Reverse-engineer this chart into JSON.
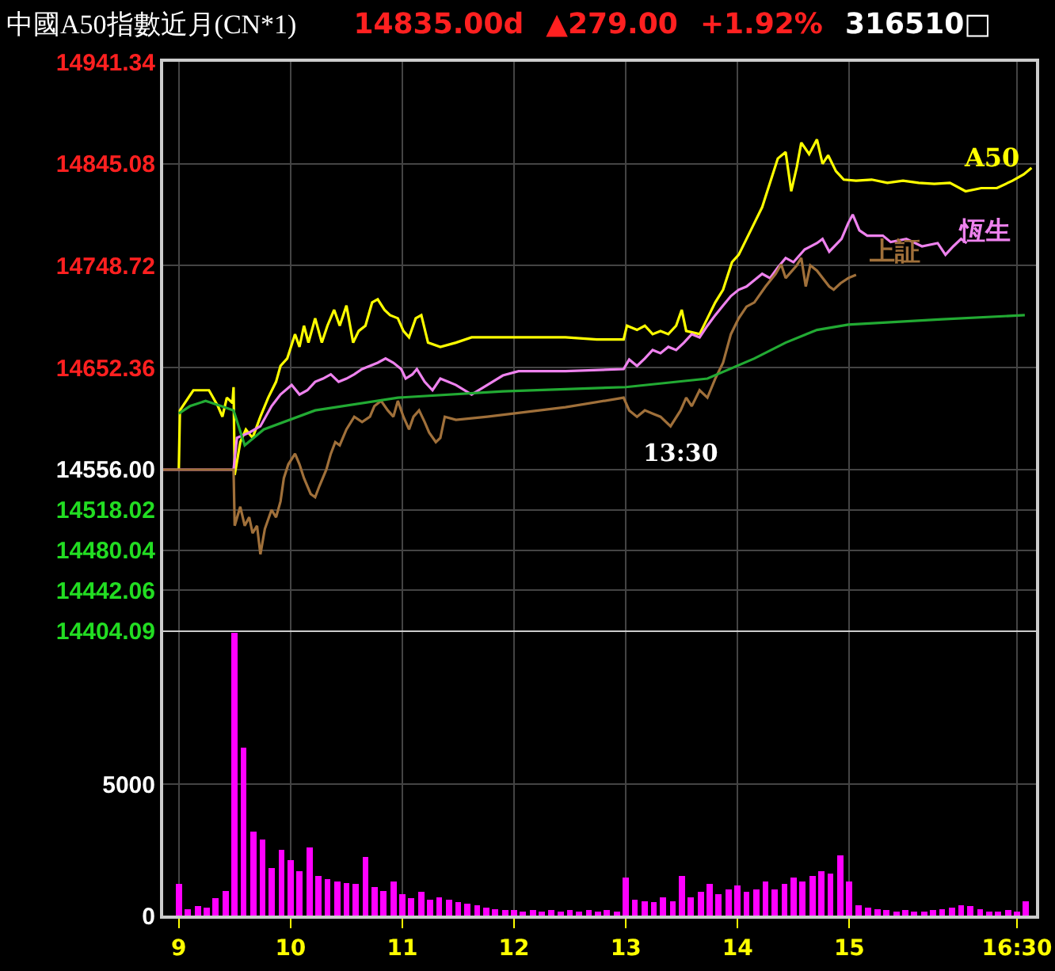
{
  "chart_data": [
    {
      "type": "line",
      "title": "中國A50指數近月(CN*1)",
      "annotations": [
        "14835.00d",
        "▲279.00",
        "+1.92%",
        "316510□",
        {
          "text": "13:30",
          "x": 13.4,
          "y": 14597
        }
      ],
      "xlim": [
        8.86,
        16.67
      ],
      "xticks": [
        9,
        10,
        11,
        12,
        13,
        14,
        15,
        {
          "value": 16.5,
          "label": null
        }
      ],
      "ylim": [
        14404.09,
        14941.34
      ],
      "yticks": [
        14404.09,
        14442.06,
        14480.04,
        14518.02,
        {
          "value": 14556,
          "label": "14556.00"
        },
        14652.36,
        14748.72,
        14845.08,
        14941.34
      ],
      "grid": true,
      "tick_labels": "y",
      "series": [
        {
          "name": "A50",
          "color": "#ffff00",
          "x": [
            9.0,
            9.01,
            9.13,
            9.27,
            9.35,
            9.39,
            9.43,
            9.48,
            9.49,
            9.5,
            9.55,
            9.6,
            9.66,
            9.73,
            9.8,
            9.87,
            9.91,
            9.97,
            10.04,
            10.08,
            10.12,
            10.16,
            10.22,
            10.28,
            10.33,
            10.39,
            10.44,
            10.5,
            10.56,
            10.61,
            10.67,
            10.73,
            10.78,
            10.84,
            10.89,
            10.96,
            11.01,
            11.06,
            11.12,
            11.17,
            11.23,
            11.34,
            11.48,
            11.62,
            11.76,
            11.9,
            12.18,
            12.46,
            12.74,
            12.98,
            13.01,
            13.1,
            13.17,
            13.24,
            13.31,
            13.38,
            13.45,
            13.5,
            13.54,
            13.66,
            13.73,
            13.8,
            13.87,
            13.95,
            14.01,
            14.08,
            14.15,
            14.22,
            14.29,
            14.36,
            14.43,
            14.48,
            14.53,
            14.57,
            14.64,
            14.71,
            14.76,
            14.81,
            14.88,
            14.95,
            15.06,
            15.2,
            15.34,
            15.48,
            15.62,
            15.76,
            15.9,
            16.04,
            16.18,
            16.32,
            16.46,
            16.56,
            16.63
          ],
          "values": [
            14556,
            14612,
            14631,
            14631,
            14616,
            14606,
            14624,
            14619,
            14634,
            14551,
            14582,
            14594,
            14586,
            14606,
            14624,
            14639,
            14654,
            14661,
            14684,
            14672,
            14692,
            14676,
            14699,
            14676,
            14692,
            14707,
            14692,
            14711,
            14676,
            14687,
            14692,
            14714,
            14717,
            14707,
            14702,
            14699,
            14687,
            14681,
            14699,
            14702,
            14676,
            14672,
            14676,
            14681,
            14681,
            14681,
            14681,
            14681,
            14679,
            14679,
            14692,
            14688,
            14692,
            14684,
            14687,
            14684,
            14692,
            14707,
            14687,
            14684,
            14699,
            14714,
            14726,
            14752,
            14759,
            14774,
            14789,
            14804,
            14827,
            14850,
            14856,
            14819,
            14842,
            14865,
            14854,
            14868,
            14845,
            14853,
            14838,
            14830,
            14829,
            14830,
            14827,
            14829,
            14827,
            14826,
            14827,
            14819,
            14822,
            14822,
            14829,
            14835,
            14841
          ]
        },
        {
          "name": "恆生",
          "color": "#ee82ee",
          "x": [
            8.86,
            9.49,
            9.52,
            9.63,
            9.73,
            9.83,
            9.91,
            10.01,
            10.08,
            10.15,
            10.22,
            10.29,
            10.36,
            10.43,
            10.5,
            10.57,
            10.64,
            10.71,
            10.78,
            10.85,
            10.92,
            10.99,
            11.03,
            11.09,
            11.13,
            11.2,
            11.27,
            11.34,
            11.41,
            11.48,
            11.62,
            11.76,
            11.9,
            12.04,
            12.46,
            12.98,
            13.03,
            13.1,
            13.17,
            13.24,
            13.31,
            13.38,
            13.45,
            13.52,
            13.59,
            13.66,
            13.73,
            13.8,
            13.87,
            13.94,
            14.01,
            14.08,
            14.15,
            14.22,
            14.29,
            14.36,
            14.43,
            14.5,
            14.6,
            14.71,
            14.76,
            14.82,
            14.93,
            14.99,
            15.03,
            15.09,
            15.16,
            15.3,
            15.37,
            15.51,
            15.65,
            15.79,
            15.86,
            15.93,
            16.0,
            16.05
          ],
          "values": [
            14556,
            14556,
            14586,
            14591,
            14597,
            14616,
            14627,
            14636,
            14627,
            14631,
            14639,
            14642,
            14646,
            14639,
            14642,
            14646,
            14651,
            14654,
            14657,
            14661,
            14657,
            14651,
            14642,
            14646,
            14651,
            14639,
            14631,
            14642,
            14639,
            14636,
            14627,
            14636,
            14645,
            14649,
            14649,
            14651,
            14660,
            14654,
            14661,
            14669,
            14666,
            14672,
            14669,
            14676,
            14684,
            14681,
            14692,
            14702,
            14711,
            14720,
            14726,
            14729,
            14735,
            14741,
            14737,
            14747,
            14756,
            14752,
            14764,
            14770,
            14774,
            14762,
            14774,
            14789,
            14797,
            14782,
            14777,
            14777,
            14771,
            14774,
            14767,
            14770,
            14759,
            14767,
            14774,
            14770
          ]
        },
        {
          "name": "上証",
          "color": "#a0703a",
          "x": [
            8.86,
            9.49,
            9.5,
            9.55,
            9.59,
            9.63,
            9.66,
            9.7,
            9.73,
            9.77,
            9.83,
            9.87,
            9.91,
            9.94,
            9.98,
            10.04,
            10.08,
            10.12,
            10.18,
            10.22,
            10.26,
            10.32,
            10.36,
            10.4,
            10.44,
            10.5,
            10.57,
            10.64,
            10.71,
            10.75,
            10.81,
            10.87,
            10.92,
            10.96,
            11.01,
            11.06,
            11.1,
            11.15,
            11.2,
            11.24,
            11.3,
            11.34,
            11.38,
            11.48,
            11.76,
            12.46,
            12.98,
            13.03,
            13.1,
            13.17,
            13.24,
            13.31,
            13.4,
            13.49,
            13.54,
            13.59,
            13.66,
            13.73,
            13.8,
            13.87,
            13.94,
            14.01,
            14.08,
            14.15,
            14.25,
            14.34,
            14.39,
            14.43,
            14.53,
            14.57,
            14.61,
            14.65,
            14.71,
            14.82,
            14.86,
            14.92,
            14.99,
            15.06
          ],
          "values": [
            14556,
            14556,
            14503,
            14521,
            14503,
            14511,
            14496,
            14503,
            14476,
            14500,
            14518,
            14511,
            14526,
            14548,
            14561,
            14571,
            14561,
            14548,
            14533,
            14530,
            14541,
            14556,
            14571,
            14582,
            14579,
            14594,
            14606,
            14601,
            14606,
            14616,
            14621,
            14612,
            14606,
            14621,
            14606,
            14594,
            14606,
            14612,
            14601,
            14591,
            14582,
            14586,
            14606,
            14603,
            14606,
            14615,
            14624,
            14612,
            14606,
            14612,
            14609,
            14606,
            14597,
            14612,
            14624,
            14616,
            14631,
            14624,
            14642,
            14657,
            14684,
            14699,
            14710,
            14714,
            14729,
            14741,
            14750,
            14737,
            14749,
            14756,
            14729,
            14749,
            14744,
            14729,
            14726,
            14732,
            14737,
            14740
          ]
        },
        {
          "color": "#22aa33",
          "x": [
            9.0,
            9.1,
            9.24,
            9.38,
            9.49,
            9.59,
            9.76,
            10.22,
            10.96,
            11.9,
            13.0,
            13.73,
            14.15,
            14.43,
            14.71,
            14.99,
            15.83,
            16.57
          ],
          "values": [
            14609,
            14616,
            14621,
            14616,
            14612,
            14579,
            14594,
            14612,
            14624,
            14630,
            14634,
            14642,
            14661,
            14676,
            14688,
            14693,
            14698,
            14702
          ]
        }
      ]
    },
    {
      "type": "bar",
      "color": "#ff00ff",
      "xlim": [
        8.86,
        16.67
      ],
      "xticks": [
        9,
        10,
        11,
        12,
        13,
        14,
        15,
        {
          "value": 16.5,
          "label": "16:30"
        }
      ],
      "ylim": [
        0,
        10800
      ],
      "yticks": [
        0,
        5000
      ],
      "grid": true,
      "x": [
        9.0,
        9.08,
        9.17,
        9.25,
        9.33,
        9.42,
        9.5,
        9.58,
        9.67,
        9.75,
        9.83,
        9.92,
        10.0,
        10.08,
        10.17,
        10.25,
        10.33,
        10.42,
        10.5,
        10.58,
        10.67,
        10.75,
        10.83,
        10.92,
        11.0,
        11.08,
        11.17,
        11.25,
        11.33,
        11.42,
        11.5,
        11.58,
        11.67,
        11.75,
        11.83,
        11.92,
        12.0,
        12.08,
        12.17,
        12.25,
        12.33,
        12.42,
        12.5,
        12.58,
        12.67,
        12.75,
        12.83,
        12.92,
        13.0,
        13.08,
        13.17,
        13.25,
        13.33,
        13.42,
        13.5,
        13.58,
        13.67,
        13.75,
        13.83,
        13.92,
        14.0,
        14.08,
        14.17,
        14.25,
        14.33,
        14.42,
        14.5,
        14.58,
        14.67,
        14.75,
        14.83,
        14.92,
        15.0,
        15.08,
        15.17,
        15.25,
        15.33,
        15.42,
        15.5,
        15.58,
        15.67,
        15.75,
        15.83,
        15.92,
        16.0,
        16.08,
        16.17,
        16.25,
        16.33,
        16.42,
        16.5,
        16.58
      ],
      "values": [
        1200,
        250,
        350,
        300,
        650,
        950,
        10780,
        6390,
        3200,
        2900,
        1800,
        2500,
        2100,
        1700,
        2600,
        1500,
        1400,
        1300,
        1250,
        1200,
        2230,
        1100,
        950,
        1300,
        800,
        650,
        900,
        600,
        700,
        600,
        500,
        450,
        400,
        300,
        250,
        200,
        200,
        150,
        200,
        150,
        200,
        150,
        200,
        150,
        200,
        150,
        200,
        150,
        1440,
        600,
        550,
        500,
        700,
        550,
        1500,
        700,
        900,
        1200,
        800,
        1000,
        1150,
        900,
        1000,
        1300,
        1000,
        1200,
        1450,
        1300,
        1500,
        1700,
        1600,
        2290,
        1300,
        400,
        300,
        250,
        200,
        150,
        200,
        150,
        150,
        200,
        250,
        300,
        400,
        350,
        250,
        150,
        150,
        200,
        150,
        540
      ]
    }
  ]
}
